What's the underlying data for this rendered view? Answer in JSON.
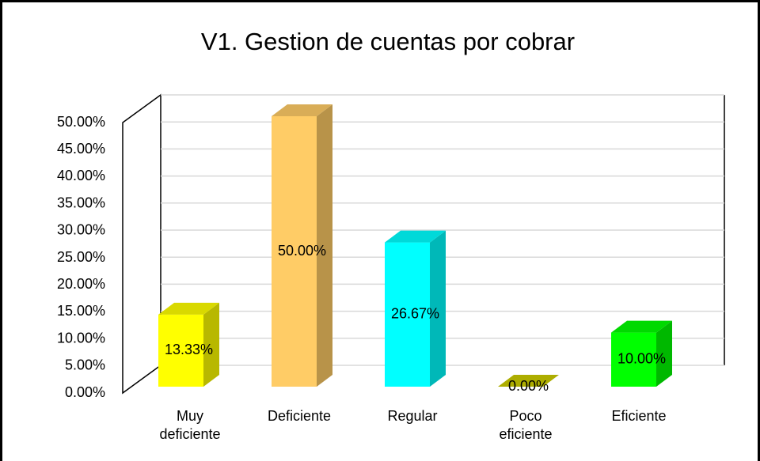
{
  "chart_data": {
    "type": "bar3d",
    "title": "V1. Gestion de cuentas por cobrar",
    "categories": [
      "Muy deficiente",
      "Deficiente",
      "Regular",
      "Poco eficiente",
      "Eficiente"
    ],
    "values": [
      13.33,
      50,
      26.67,
      0,
      10
    ],
    "value_labels": [
      "13.33%",
      "50.00%",
      "26.67%",
      "0.00%",
      "10.00%"
    ],
    "colors": [
      "#ffff00",
      "#ffcc66",
      "#00ffff",
      "#cccc00",
      "#00ff00"
    ],
    "ylim": [
      0,
      50
    ],
    "yticks": [
      {
        "value": 0,
        "label": "0.00%"
      },
      {
        "value": 5,
        "label": "5.00%"
      },
      {
        "value": 10,
        "label": "10.00%"
      },
      {
        "value": 15,
        "label": "15.00%"
      },
      {
        "value": 20,
        "label": "20.00%"
      },
      {
        "value": 25,
        "label": "25.00%"
      },
      {
        "value": 30,
        "label": "30.00%"
      },
      {
        "value": 35,
        "label": "35.00%"
      },
      {
        "value": 40,
        "label": "40.00%"
      },
      {
        "value": 45,
        "label": "45.00%"
      },
      {
        "value": 50,
        "label": "50.00%"
      }
    ],
    "grid": true
  }
}
